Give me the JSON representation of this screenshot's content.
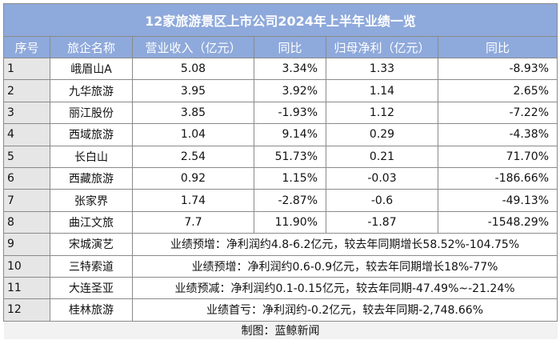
{
  "title": "12家旅游景区上市公司2024年上半年业绩一览",
  "headers": [
    "序号",
    "旅企名称",
    "营业收入（亿元）",
    "同比",
    "归母净利（亿元）",
    "同比"
  ],
  "rows": [
    {
      "no": "1",
      "name": "峨眉山A",
      "revenue": "5.08",
      "rev_yoy": "3.34%",
      "profit": "1.33",
      "profit_yoy": "-8.93%"
    },
    {
      "no": "2",
      "name": "九华旅游",
      "revenue": "3.95",
      "rev_yoy": "3.92%",
      "profit": "1.14",
      "profit_yoy": "2.65%"
    },
    {
      "no": "3",
      "name": "丽江股份",
      "revenue": "3.85",
      "rev_yoy": "-1.93%",
      "profit": "1.12",
      "profit_yoy": "-7.22%"
    },
    {
      "no": "4",
      "name": "西域旅游",
      "revenue": "1.04",
      "rev_yoy": "9.14%",
      "profit": "0.29",
      "profit_yoy": "-4.38%"
    },
    {
      "no": "5",
      "name": "长白山",
      "revenue": "2.54",
      "rev_yoy": "51.73%",
      "profit": "0.21",
      "profit_yoy": "71.70%"
    },
    {
      "no": "6",
      "name": "西藏旅游",
      "revenue": "0.92",
      "rev_yoy": "1.15%",
      "profit": "-0.03",
      "profit_yoy": "-186.66%"
    },
    {
      "no": "7",
      "name": "张家界",
      "revenue": "1.74",
      "rev_yoy": "-2.87%",
      "profit": "-0.6",
      "profit_yoy": "-49.13%"
    },
    {
      "no": "8",
      "name": "曲江文旅",
      "revenue": "7.7",
      "rev_yoy": "11.90%",
      "profit": "-1.87",
      "profit_yoy": "-1548.29%"
    }
  ],
  "note_rows": [
    {
      "no": "9",
      "name": "宋城演艺",
      "note": "业绩预增：净利润约4.8-6.2亿元，较去年同期增长58.52%-104.75%"
    },
    {
      "no": "10",
      "name": "三特索道",
      "note": "业绩预增：净利润约0.6-0.9亿元，较去年同期增长18%-77%"
    },
    {
      "no": "11",
      "name": "大连圣亚",
      "note": "业绩预减：净利润约0.1-0.15亿元，较去年同期-47.49%~-21.24%"
    },
    {
      "no": "12",
      "name": "桂林旅游",
      "note": "业绩首亏：净利润约-0.2亿元，较去年同期-2,748.66%"
    }
  ],
  "footer": "制图：蓝鲸新闻"
}
